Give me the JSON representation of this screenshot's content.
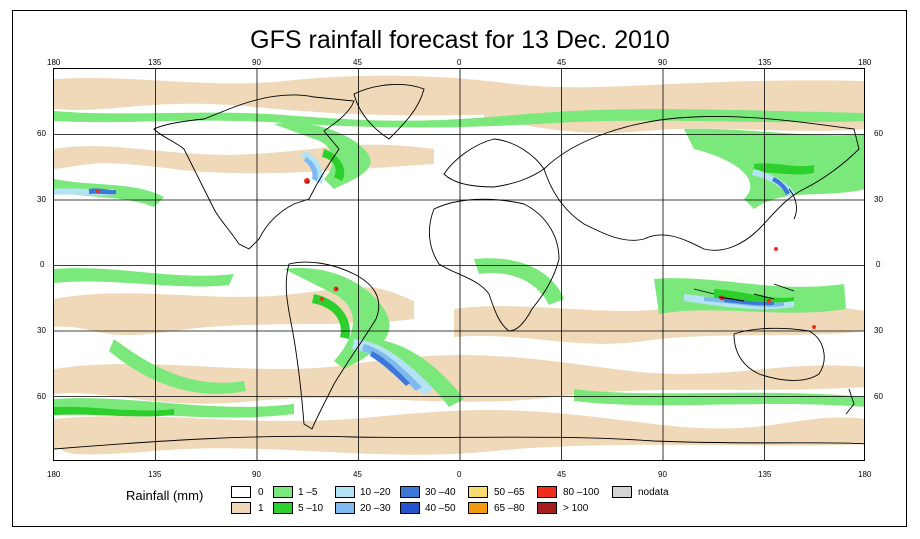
{
  "title": "GFS rainfall forecast for 13 Dec. 2010",
  "lon_ticks": [
    "180",
    "135",
    "90",
    "45",
    "0",
    "45",
    "90",
    "135",
    "180"
  ],
  "lat_ticks": [
    "60",
    "30",
    "0",
    "30",
    "60"
  ],
  "colors": {
    "c0": "#ffffff",
    "c1": "#efd9b9",
    "c2": "#7be87b",
    "c3": "#2ccf2c",
    "c4": "#b4e3f3",
    "c5": "#7fb9ef",
    "c6": "#3c78d8",
    "c7": "#2554cc",
    "c8": "#f7dc72",
    "c9": "#f39b10",
    "c10": "#ee2e1b",
    "c11": "#a81d1d",
    "nodata": "#d4d4d4"
  },
  "legend": {
    "title": "Rainfall (mm)",
    "items": [
      {
        "label": "0",
        "color": "#ffffff"
      },
      {
        "label": "1",
        "color": "#efd9b9"
      },
      {
        "label": "1 –5",
        "color": "#7be87b"
      },
      {
        "label": "5 –10",
        "color": "#2ccf2c"
      },
      {
        "label": "10 –20",
        "color": "#b4e3f3"
      },
      {
        "label": "20 –30",
        "color": "#7fb9ef"
      },
      {
        "label": "30 –40",
        "color": "#3c78d8"
      },
      {
        "label": "40 –50",
        "color": "#2554cc"
      },
      {
        "label": "50 –65",
        "color": "#f7dc72"
      },
      {
        "label": "65 –80",
        "color": "#f39b10"
      },
      {
        "label": "80 –100",
        "color": "#ee2e1b"
      },
      {
        "label": "> 100",
        "color": "#a81d1d"
      },
      {
        "label": "nodata",
        "color": "#d4d4d4"
      }
    ]
  }
}
